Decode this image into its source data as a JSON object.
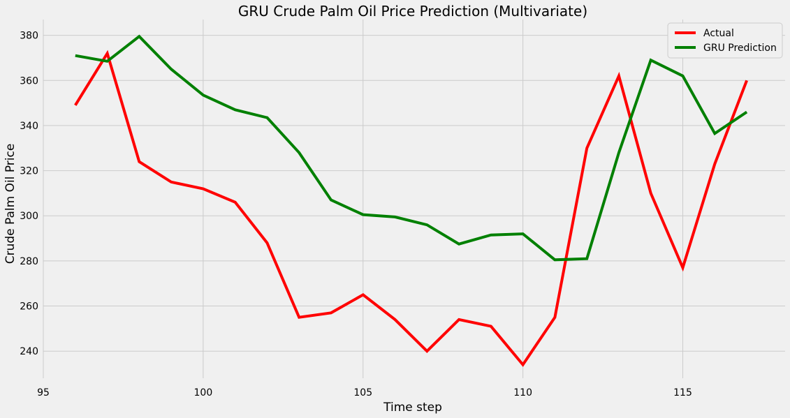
{
  "chart_data": {
    "type": "line",
    "title": "GRU Crude Palm Oil Price Prediction (Multivariate)",
    "xlabel": "Time step",
    "ylabel": "Crude Palm Oil Price",
    "xlim": [
      95,
      118.2
    ],
    "ylim": [
      228,
      387
    ],
    "xticks": [
      95,
      100,
      105,
      110,
      115
    ],
    "yticks": [
      240,
      260,
      280,
      300,
      320,
      340,
      360,
      380
    ],
    "grid": true,
    "legend_position": "top-right",
    "x": [
      96,
      97,
      98,
      99,
      100,
      101,
      102,
      103,
      104,
      105,
      106,
      107,
      108,
      109,
      110,
      111,
      112,
      113,
      114,
      115,
      116,
      117
    ],
    "series": [
      {
        "name": "Actual",
        "color": "#ff0000",
        "values": [
          349,
          372,
          324,
          315,
          312,
          306,
          288,
          255,
          257,
          265,
          254,
          240,
          254,
          251,
          234,
          255,
          330,
          362,
          310,
          277,
          323,
          360
        ]
      },
      {
        "name": "GRU Prediction",
        "color": "#008000",
        "values": [
          371,
          368.5,
          379.5,
          365,
          353.5,
          347,
          343.5,
          328,
          307,
          300.5,
          299.5,
          296,
          287.5,
          291.5,
          292,
          280.5,
          281,
          328,
          369,
          362,
          336.5,
          346
        ]
      }
    ]
  }
}
